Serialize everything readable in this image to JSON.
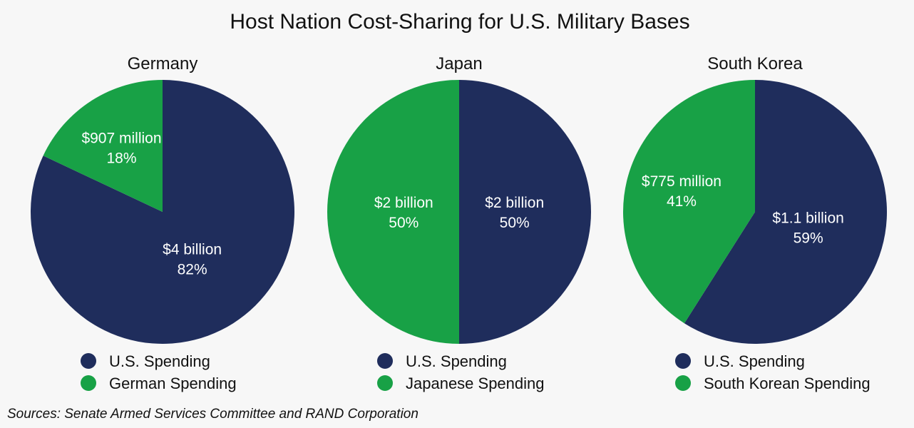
{
  "chart_data": {
    "type": "pie",
    "title": "Host Nation Cost-Sharing for U.S. Military Bases",
    "colors": {
      "us": "#1f2d5c",
      "host": "#18a146",
      "label": "#ffffff"
    },
    "charts": [
      {
        "title": "Germany",
        "slices": [
          {
            "key": "us",
            "name": "U.S. Spending",
            "amount": "$4 billion",
            "percent": 82,
            "percent_label": "82%"
          },
          {
            "key": "host",
            "name": "German Spending",
            "amount": "$907 million",
            "percent": 18,
            "percent_label": "18%"
          }
        ]
      },
      {
        "title": "Japan",
        "slices": [
          {
            "key": "us",
            "name": "U.S. Spending",
            "amount": "$2 billion",
            "percent": 50,
            "percent_label": "50%"
          },
          {
            "key": "host",
            "name": "Japanese Spending",
            "amount": "$2 billion",
            "percent": 50,
            "percent_label": "50%"
          }
        ]
      },
      {
        "title": "South Korea",
        "slices": [
          {
            "key": "us",
            "name": "U.S. Spending",
            "amount": "$1.1 billion",
            "percent": 59,
            "percent_label": "59%"
          },
          {
            "key": "host",
            "name": "South Korean Spending",
            "amount": "$775 million",
            "percent": 41,
            "percent_label": "41%"
          }
        ]
      }
    ]
  },
  "footer": {
    "sources": "Sources: Senate Armed Services Committee and RAND Corporation"
  }
}
